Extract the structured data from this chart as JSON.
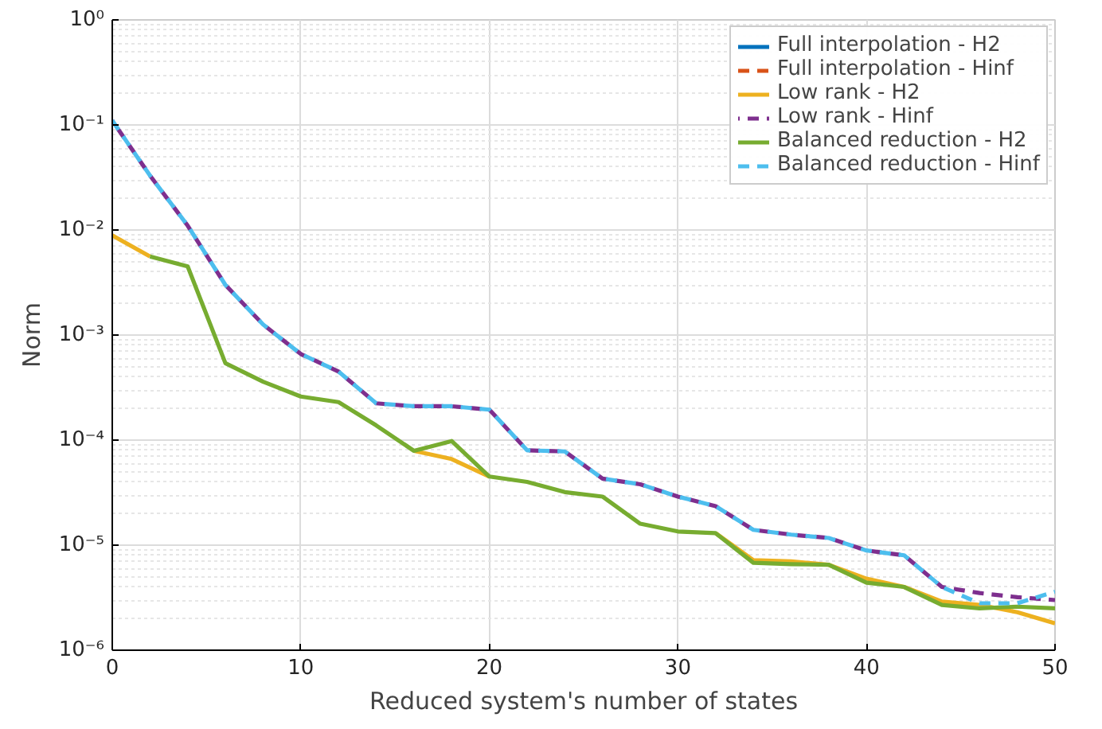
{
  "chart_data": {
    "type": "line",
    "xlabel": "Reduced system's number of states",
    "ylabel": "Norm",
    "log": "y",
    "grid": true,
    "legend": "top right",
    "marker": "none",
    "x": [
      0,
      2,
      4,
      6,
      8,
      10,
      12,
      14,
      16,
      18,
      20,
      22,
      24,
      26,
      28,
      30,
      32,
      34,
      36,
      38,
      40,
      42,
      44,
      46,
      48,
      50
    ],
    "xlim": [
      0,
      50
    ],
    "xticks": [
      0,
      10,
      20,
      30,
      40,
      50
    ],
    "ylim": [
      1e-06,
      1
    ],
    "yticks": [
      {
        "value": 1e-06,
        "label": "10⁻⁶"
      },
      {
        "value": 1e-05,
        "label": "10⁻⁵"
      },
      {
        "value": 0.0001,
        "label": "10⁻⁴"
      },
      {
        "value": 0.001,
        "label": "10⁻³"
      },
      {
        "value": 0.01,
        "label": "10⁻²"
      },
      {
        "value": 0.1,
        "label": "10⁻¹"
      },
      {
        "value": 1,
        "label": "10⁰"
      }
    ],
    "series": [
      {
        "name": "Full interpolation - H2",
        "color": "#0072bd",
        "line_style": "solid",
        "values": [
          null,
          null,
          null,
          null,
          null,
          null,
          null,
          null,
          null,
          null,
          null,
          null,
          null,
          null,
          null,
          null,
          null,
          null,
          null,
          null,
          null,
          null,
          null,
          null,
          null,
          null
        ]
      },
      {
        "name": "Full interpolation - Hinf",
        "color": "#d95319",
        "line_style": "dashed",
        "values": [
          null,
          null,
          null,
          null,
          null,
          null,
          null,
          null,
          null,
          null,
          null,
          null,
          null,
          null,
          null,
          null,
          null,
          null,
          null,
          null,
          null,
          null,
          null,
          null,
          null,
          null
        ]
      },
      {
        "name": "Low rank - H2",
        "color": "#edb120",
        "line_style": "solid",
        "values": [
          0.0089,
          0.0056,
          null,
          null,
          null,
          null,
          null,
          null,
          7.9e-05,
          6.6e-05,
          4.5e-05,
          null,
          null,
          null,
          null,
          null,
          1.3e-05,
          7.2e-06,
          7e-06,
          6.5e-06,
          4.8e-06,
          4e-06,
          2.9e-06,
          2.7e-06,
          2.3e-06,
          1.8e-06
        ]
      },
      {
        "name": "Low rank - Hinf",
        "color": "#7e2f8e",
        "line_style": "dashed",
        "values": [
          0.11,
          0.033,
          0.011,
          0.003,
          0.00126,
          0.00066,
          0.00045,
          0.000224,
          0.00021,
          0.00021,
          0.000195,
          8e-05,
          7.8e-05,
          4.3e-05,
          3.8e-05,
          2.9e-05,
          2.35e-05,
          1.4e-05,
          1.26e-05,
          1.17e-05,
          8.9e-06,
          8e-06,
          4e-06,
          3.5e-06,
          3.2e-06,
          3e-06
        ]
      },
      {
        "name": "Balanced reduction - H2",
        "color": "#77ac30",
        "line_style": "solid",
        "values": [
          null,
          0.0056,
          0.0045,
          0.00054,
          0.00036,
          0.00026,
          0.00023,
          0.000138,
          7.9e-05,
          9.8e-05,
          4.5e-05,
          4e-05,
          3.2e-05,
          2.9e-05,
          1.6e-05,
          1.35e-05,
          1.3e-05,
          6.8e-06,
          6.6e-06,
          6.5e-06,
          4.4e-06,
          4e-06,
          2.7e-06,
          2.5e-06,
          2.6e-06,
          2.5e-06
        ]
      },
      {
        "name": "Balanced reduction - Hinf",
        "color": "#4dbeee",
        "line_style": "dashed",
        "values": [
          0.11,
          0.033,
          0.011,
          0.003,
          0.00126,
          0.00066,
          0.00045,
          0.000224,
          0.00021,
          0.00021,
          0.000195,
          8e-05,
          7.8e-05,
          4.3e-05,
          3.8e-05,
          2.9e-05,
          2.35e-05,
          1.4e-05,
          1.26e-05,
          1.17e-05,
          8.9e-06,
          8e-06,
          4e-06,
          2.8e-06,
          2.8e-06,
          3.6e-06
        ]
      }
    ]
  }
}
